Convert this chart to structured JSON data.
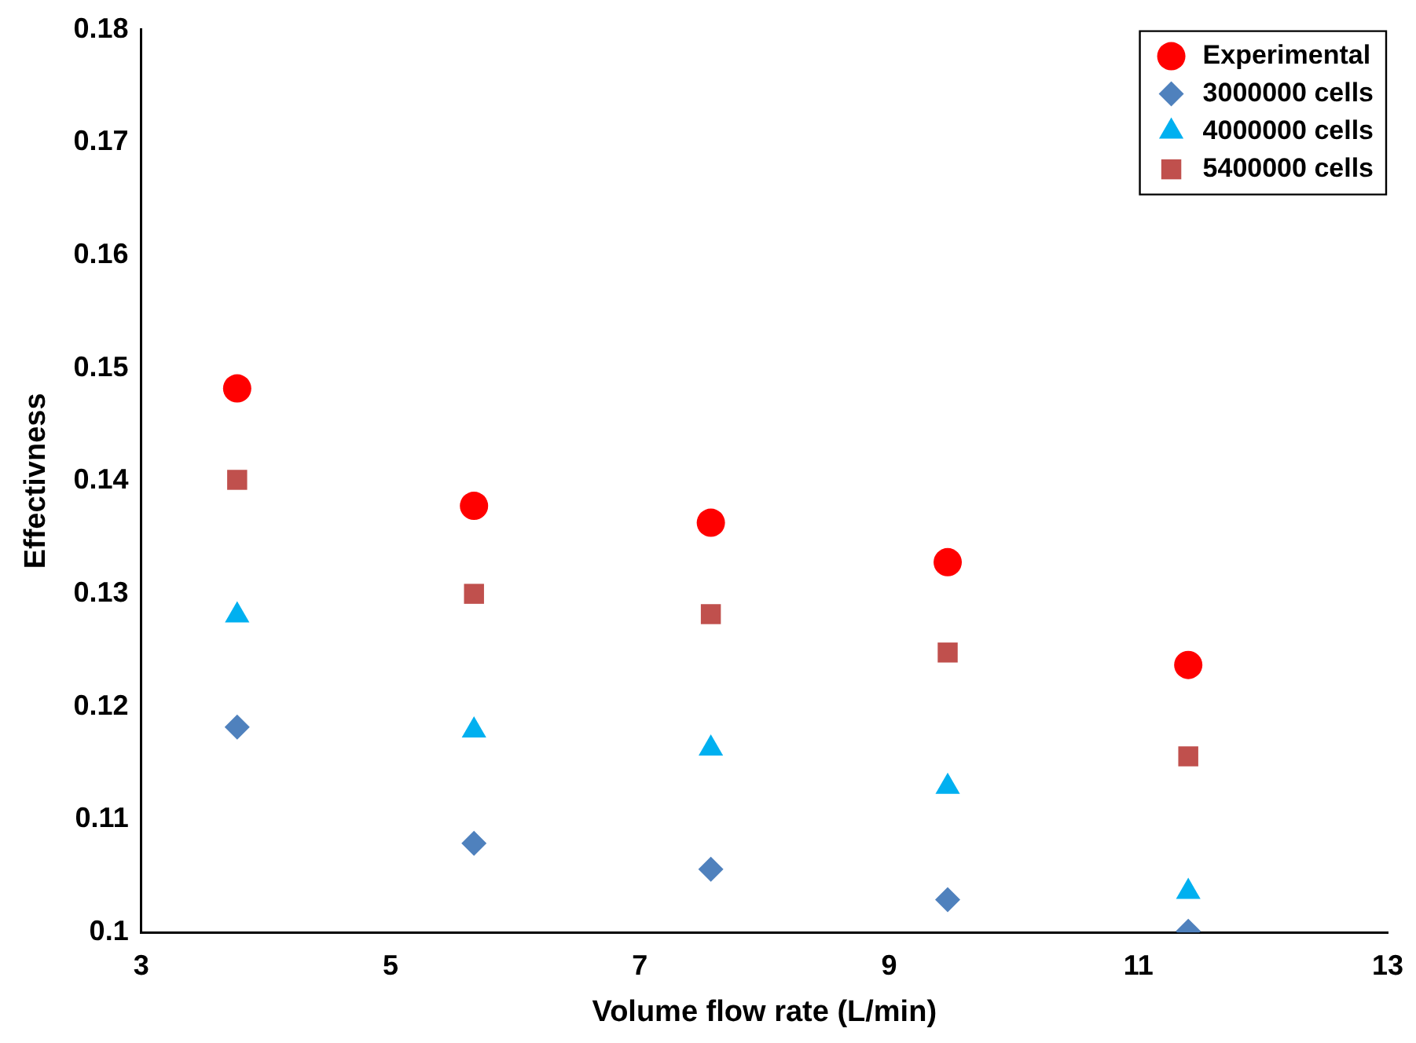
{
  "chart_data": {
    "type": "scatter",
    "xlabel": "Volume flow rate (L/min)",
    "ylabel": "Effectivness",
    "xlim": [
      3,
      13
    ],
    "xticks": [
      3,
      5,
      7,
      9,
      11,
      13
    ],
    "ylim": [
      0.1,
      0.18
    ],
    "yticks": [
      0.1,
      0.11,
      0.12,
      0.13,
      0.14,
      0.15,
      0.16,
      0.17,
      0.18
    ],
    "grid": false,
    "legend": "top right",
    "x": [
      3.77,
      5.67,
      7.57,
      9.47,
      11.4
    ],
    "series": [
      {
        "name": "Experimental",
        "color": "#ff0000",
        "marker": "circle",
        "values": [
          0.1482,
          0.1378,
          0.1363,
          0.1328,
          0.1237
        ]
      },
      {
        "name": "3000000 cells",
        "color": "#4f81bd",
        "marker": "diamond",
        "values": [
          0.1182,
          0.1079,
          0.1056,
          0.1029,
          0.1001
        ]
      },
      {
        "name": "4000000 cells",
        "color": "#00b0f0",
        "marker": "triangle",
        "values": [
          0.1281,
          0.1179,
          0.1163,
          0.1129,
          0.1036
        ]
      },
      {
        "name": "5400000 cells",
        "color": "#c0504d",
        "marker": "square",
        "values": [
          0.1401,
          0.13,
          0.1282,
          0.1248,
          0.1156
        ]
      }
    ]
  }
}
